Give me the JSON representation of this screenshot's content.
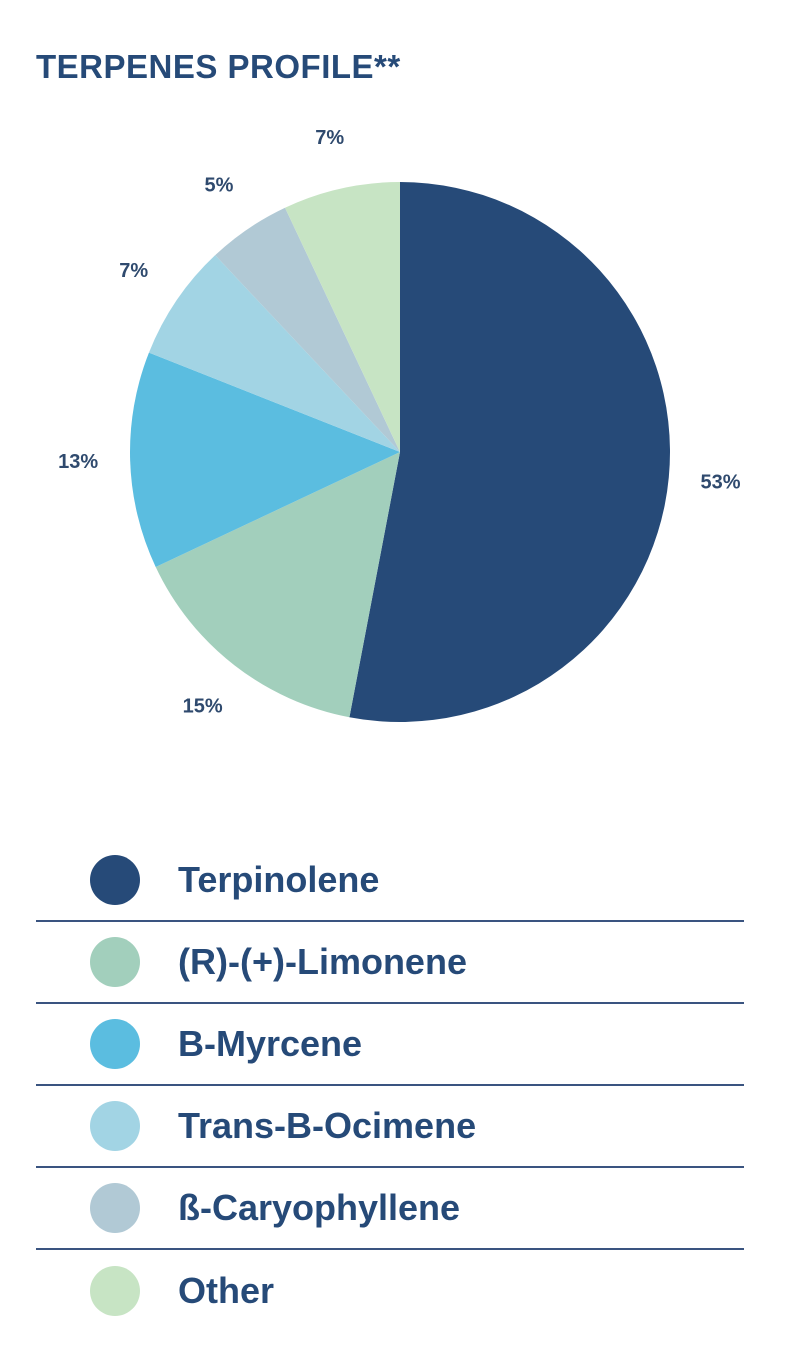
{
  "chart_data": {
    "type": "pie",
    "title": "TERPENES PROFILE**",
    "slices": [
      {
        "name": "Terpinolene",
        "value": 53,
        "label": "53%",
        "color": "#264a78"
      },
      {
        "name": "(R)-(+)-Limonene",
        "value": 15,
        "label": "15%",
        "color": "#a2cfbc"
      },
      {
        "name": "B-Myrcene",
        "value": 13,
        "label": "13%",
        "color": "#5bbde0"
      },
      {
        "name": "Trans-B-Ocimene",
        "value": 7,
        "label": "7%",
        "color": "#a2d4e4"
      },
      {
        "name": "ß-Caryophyllene",
        "value": 5,
        "label": "5%",
        "color": "#b1c9d5"
      },
      {
        "name": "Other",
        "value": 7,
        "label": "7%",
        "color": "#c7e4c4"
      }
    ],
    "start": "12 o'clock",
    "direction": "clockwise",
    "legend_position": "bottom"
  }
}
